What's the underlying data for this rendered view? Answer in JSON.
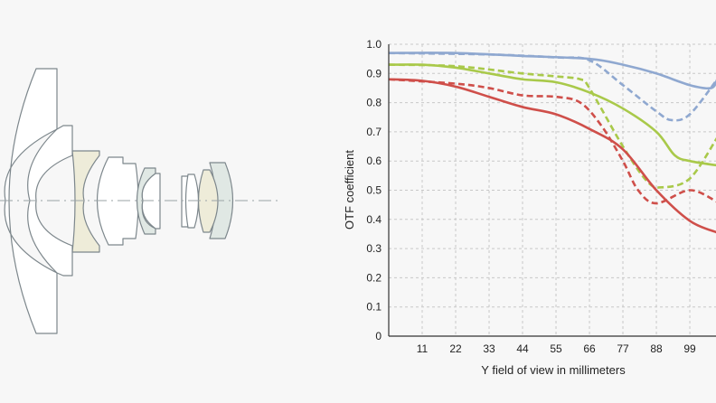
{
  "lens_diagram": {
    "element_colors": {
      "white": "#ffffff",
      "beige": "#eeecd9",
      "grey_green": "#e0e8e4",
      "outline": "#7d878c",
      "axis_line": "#9aa3a6"
    }
  },
  "chart_data": {
    "type": "line",
    "title": "",
    "xlabel": "Y field of view in millimeters",
    "ylabel": "OTF coefficient",
    "xlim": [
      0,
      108
    ],
    "ylim": [
      0,
      1.0
    ],
    "grid": true,
    "x_ticks": [
      11,
      22,
      33,
      44,
      55,
      66,
      77,
      88,
      99
    ],
    "y_ticks": [
      "0",
      "0.1",
      "0.2",
      "0.3",
      "0.4",
      "0.5",
      "0.6",
      "0.7",
      "0.8",
      "0.9",
      "1.0"
    ],
    "series": [
      {
        "name": "blue-solid",
        "color": "#8fa8d0",
        "dashed": false,
        "x": [
          0,
          22,
          44,
          66,
          77,
          88,
          99,
          106,
          108
        ],
        "y": [
          0.97,
          0.97,
          0.96,
          0.95,
          0.93,
          0.9,
          0.86,
          0.85,
          0.88
        ]
      },
      {
        "name": "blue-dashed",
        "color": "#8fa8d0",
        "dashed": true,
        "x": [
          0,
          33,
          55,
          66,
          77,
          88,
          93,
          99,
          108
        ],
        "y": [
          0.97,
          0.965,
          0.955,
          0.945,
          0.86,
          0.77,
          0.74,
          0.76,
          0.88
        ]
      },
      {
        "name": "green-solid",
        "color": "#a9c94a",
        "dashed": false,
        "x": [
          0,
          11,
          22,
          33,
          44,
          55,
          66,
          77,
          88,
          94,
          99,
          108
        ],
        "y": [
          0.93,
          0.93,
          0.92,
          0.9,
          0.88,
          0.87,
          0.835,
          0.78,
          0.7,
          0.62,
          0.6,
          0.585
        ]
      },
      {
        "name": "green-dashed",
        "color": "#a9c94a",
        "dashed": true,
        "x": [
          0,
          22,
          44,
          55,
          63,
          66,
          77,
          85,
          90,
          99,
          108
        ],
        "y": [
          0.93,
          0.925,
          0.9,
          0.89,
          0.88,
          0.85,
          0.65,
          0.53,
          0.51,
          0.54,
          0.68
        ]
      },
      {
        "name": "red-solid",
        "color": "#cf4f4a",
        "dashed": false,
        "x": [
          0,
          11,
          22,
          33,
          44,
          55,
          66,
          77,
          88,
          99,
          108
        ],
        "y": [
          0.88,
          0.875,
          0.855,
          0.82,
          0.785,
          0.76,
          0.71,
          0.64,
          0.5,
          0.395,
          0.355
        ]
      },
      {
        "name": "red-dashed",
        "color": "#cf4f4a",
        "dashed": true,
        "x": [
          0,
          22,
          33,
          44,
          55,
          63,
          70,
          77,
          82,
          88,
          99,
          108
        ],
        "y": [
          0.88,
          0.865,
          0.85,
          0.825,
          0.82,
          0.8,
          0.72,
          0.6,
          0.5,
          0.455,
          0.5,
          0.46
        ]
      }
    ]
  }
}
